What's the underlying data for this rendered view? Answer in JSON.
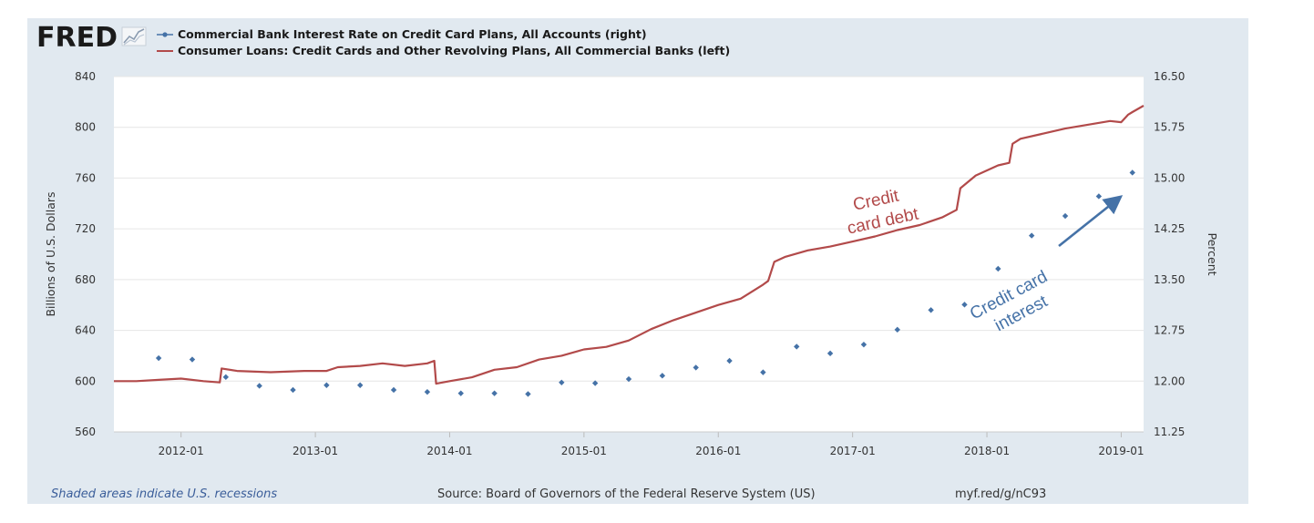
{
  "logo": {
    "text": "FRED"
  },
  "colors": {
    "panel": "#e1e9f0",
    "plot": "#ffffff",
    "debt": "#b24a4a",
    "rate": "#4572a7",
    "grid": "#e6e6e6"
  },
  "chart_data": {
    "type": "line",
    "legend": [
      {
        "name": "Commercial Bank Interest Rate on Credit Card Plans, All Accounts (right)",
        "marker": "dot-line",
        "color": "#4572a7"
      },
      {
        "name": "Consumer Loans: Credit Cards and Other Revolving Plans, All Commercial Banks (left)",
        "marker": "line",
        "color": "#b24a4a"
      }
    ],
    "y_left": {
      "label": "Billions of U.S. Dollars",
      "range": [
        560,
        840
      ],
      "ticks": [
        "840",
        "800",
        "760",
        "720",
        "680",
        "640",
        "600",
        "560"
      ]
    },
    "y_right": {
      "label": "Percent",
      "range": [
        11.25,
        16.5
      ],
      "ticks": [
        "16.50",
        "15.75",
        "15.00",
        "14.25",
        "13.50",
        "12.75",
        "12.00",
        "11.25"
      ]
    },
    "x_axis": {
      "range": [
        "2011-07",
        "2019-03"
      ],
      "ticks": [
        "2012-01",
        "2013-01",
        "2014-01",
        "2015-01",
        "2016-01",
        "2017-01",
        "2018-01",
        "2019-01"
      ]
    },
    "series": [
      {
        "name": "Consumer Loans: Credit Cards and Other Revolving Plans, All Commercial Banks (left)",
        "axis": "left",
        "style": "line",
        "x": [
          "2011-07-01",
          "2011-09-01",
          "2011-11-01",
          "2012-01-01",
          "2012-03-01",
          "2012-04-15",
          "2012-04-20",
          "2012-06-01",
          "2012-09-01",
          "2012-12-01",
          "2013-02-01",
          "2013-03-01",
          "2013-05-01",
          "2013-07-01",
          "2013-09-01",
          "2013-11-01",
          "2013-11-20",
          "2013-11-25",
          "2014-01-01",
          "2014-03-01",
          "2014-05-01",
          "2014-07-01",
          "2014-09-01",
          "2014-11-01",
          "2015-01-01",
          "2015-03-01",
          "2015-05-01",
          "2015-07-01",
          "2015-09-01",
          "2015-11-01",
          "2016-01-01",
          "2016-03-01",
          "2016-05-01",
          "2016-05-15",
          "2016-06-01",
          "2016-07-01",
          "2016-09-01",
          "2016-11-01",
          "2017-01-01",
          "2017-03-01",
          "2017-05-01",
          "2017-07-01",
          "2017-09-01",
          "2017-10-10",
          "2017-10-20",
          "2017-12-01",
          "2018-02-01",
          "2018-03-01",
          "2018-03-10",
          "2018-04-01",
          "2018-06-01",
          "2018-08-01",
          "2018-10-01",
          "2018-12-01",
          "2019-01-01",
          "2019-01-20",
          "2019-02-01",
          "2019-03-01"
        ],
        "values": [
          600,
          600,
          601,
          602,
          600,
          599,
          610,
          608,
          607,
          608,
          608,
          611,
          612,
          614,
          612,
          614,
          616,
          598,
          600,
          603,
          609,
          611,
          617,
          620,
          625,
          627,
          632,
          641,
          648,
          654,
          660,
          665,
          676,
          679,
          694,
          698,
          703,
          706,
          710,
          714,
          719,
          723,
          729,
          735,
          752,
          762,
          770,
          772,
          787,
          791,
          795,
          799,
          802,
          805,
          804,
          810,
          812,
          817
        ]
      },
      {
        "name": "Commercial Bank Interest Rate on Credit Card Plans, All Accounts (right)",
        "axis": "right",
        "style": "markers",
        "x": [
          "2011-11",
          "2012-02",
          "2012-05",
          "2012-08",
          "2012-11",
          "2013-02",
          "2013-05",
          "2013-08",
          "2013-11",
          "2014-02",
          "2014-05",
          "2014-08",
          "2014-11",
          "2015-02",
          "2015-05",
          "2015-08",
          "2015-11",
          "2016-02",
          "2016-05",
          "2016-08",
          "2016-11",
          "2017-02",
          "2017-05",
          "2017-08",
          "2017-11",
          "2018-02",
          "2018-05",
          "2018-08",
          "2018-11",
          "2019-02"
        ],
        "values": [
          12.34,
          12.32,
          12.06,
          11.93,
          11.87,
          11.94,
          11.94,
          11.87,
          11.84,
          11.82,
          11.82,
          11.81,
          11.98,
          11.97,
          12.03,
          12.08,
          12.2,
          12.3,
          12.13,
          12.51,
          12.41,
          12.54,
          12.76,
          13.05,
          13.13,
          13.66,
          14.15,
          14.44,
          14.73,
          15.08
        ]
      }
    ],
    "annotations": [
      {
        "text_lines": [
          "Credit",
          "card debt"
        ],
        "color": "#b24a4a"
      },
      {
        "text_lines": [
          "Credit card",
          "interest"
        ],
        "color": "#4572a7"
      }
    ],
    "grid": true
  },
  "footer": {
    "note": "Shaded areas indicate U.S. recessions",
    "source": "Source: Board of Governors of the Federal Reserve System (US)",
    "link": "myf.red/g/nC93"
  }
}
